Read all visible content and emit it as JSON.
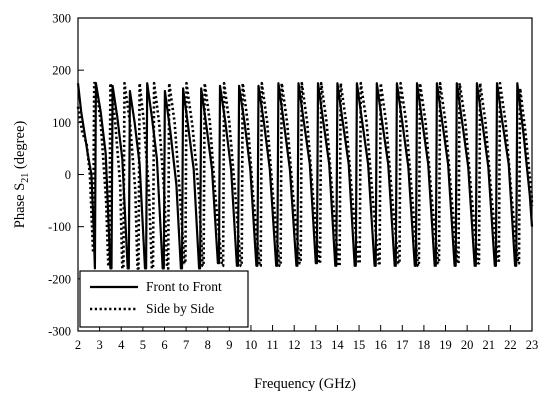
{
  "chart_data": {
    "type": "line",
    "title": "",
    "xlabel": "Frequency (GHz)",
    "ylabel_main": "Phase S",
    "ylabel_sub": "21",
    "ylabel_tail": " (degree)",
    "xlim": [
      2,
      23
    ],
    "ylim": [
      -300,
      300
    ],
    "x_ticks": [
      2,
      3,
      4,
      5,
      6,
      7,
      8,
      9,
      10,
      11,
      12,
      13,
      14,
      15,
      16,
      17,
      18,
      19,
      20,
      21,
      22,
      23
    ],
    "y_ticks": [
      -300,
      -200,
      -100,
      0,
      100,
      200,
      300
    ],
    "grid": false,
    "legend_position": "bottom-left",
    "series": [
      {
        "name": "Front to Front",
        "style": "solid",
        "color": "#000000",
        "x": [
          2.0,
          2.15,
          2.3,
          2.45,
          2.62,
          2.72,
          2.78,
          2.83,
          3.05,
          3.28,
          3.5,
          3.55,
          3.6,
          3.82,
          4.05,
          4.3,
          4.35,
          4.4,
          4.62,
          4.85,
          5.1,
          5.15,
          5.2,
          5.42,
          5.65,
          5.92,
          5.97,
          6.02,
          6.28,
          6.55,
          6.76,
          6.81,
          6.86,
          7.1,
          7.35,
          7.6,
          7.65,
          7.7,
          7.95,
          8.2,
          8.47,
          8.52,
          8.57,
          8.82,
          9.08,
          9.35,
          9.4,
          9.45,
          9.7,
          9.97,
          10.25,
          10.3,
          10.35,
          10.6,
          10.87,
          11.17,
          11.22,
          11.27,
          11.52,
          11.8,
          12.1,
          12.15,
          12.2,
          12.45,
          12.72,
          13.0,
          13.05,
          13.1,
          13.35,
          13.62,
          13.9,
          13.95,
          14.0,
          14.25,
          14.52,
          14.8,
          14.85,
          14.9,
          15.15,
          15.42,
          15.72,
          15.77,
          15.82,
          16.07,
          16.35,
          16.65,
          16.7,
          16.75,
          17.0,
          17.28,
          17.58,
          17.63,
          17.68,
          17.93,
          18.2,
          18.5,
          18.55,
          18.6,
          18.85,
          19.12,
          19.42,
          19.47,
          19.52,
          19.77,
          20.05,
          20.35,
          20.4,
          20.45,
          20.7,
          20.98,
          21.28,
          21.33,
          21.38,
          21.63,
          21.92,
          22.22,
          22.27,
          22.32,
          22.6,
          22.9,
          23.0
        ],
        "y": [
          175,
          120,
          80,
          40,
          0,
          -100,
          -180,
          175,
          120,
          40,
          -180,
          -180,
          170,
          110,
          30,
          -180,
          -180,
          160,
          100,
          20,
          -180,
          -180,
          175,
          110,
          30,
          -180,
          -180,
          160,
          80,
          -20,
          -180,
          -180,
          165,
          90,
          10,
          -180,
          -180,
          165,
          90,
          10,
          -170,
          -170,
          170,
          100,
          10,
          -175,
          -175,
          170,
          100,
          10,
          -175,
          -175,
          170,
          100,
          10,
          -175,
          -175,
          175,
          100,
          10,
          -175,
          -175,
          175,
          100,
          20,
          -170,
          -170,
          175,
          100,
          20,
          -175,
          -175,
          175,
          100,
          20,
          -175,
          -175,
          175,
          100,
          20,
          -175,
          -175,
          175,
          100,
          20,
          -175,
          -175,
          175,
          100,
          15,
          -175,
          -175,
          175,
          100,
          20,
          -175,
          -175,
          175,
          100,
          20,
          -175,
          -175,
          175,
          100,
          15,
          -175,
          -175,
          175,
          100,
          15,
          -175,
          -175,
          175,
          100,
          20,
          -175,
          -175,
          175,
          80,
          -40,
          -100
        ]
      },
      {
        "name": "Side by Side",
        "style": "dotted",
        "color": "#000000",
        "x": [
          2.0,
          2.2,
          2.4,
          2.55,
          2.7,
          2.75,
          2.82,
          3.05,
          3.3,
          3.4,
          3.45,
          3.5,
          3.72,
          3.95,
          4.05,
          4.1,
          4.15,
          4.4,
          4.65,
          4.75,
          4.8,
          4.85,
          5.05,
          5.28,
          5.42,
          5.47,
          5.52,
          5.75,
          6.0,
          6.12,
          6.17,
          6.22,
          6.47,
          6.72,
          6.92,
          6.97,
          7.02,
          7.3,
          7.6,
          7.76,
          7.81,
          7.86,
          8.1,
          8.35,
          8.66,
          8.71,
          8.76,
          9.0,
          9.28,
          9.52,
          9.57,
          9.62,
          9.85,
          10.1,
          10.4,
          10.45,
          10.5,
          10.75,
          11.02,
          11.32,
          11.37,
          11.42,
          11.67,
          11.95,
          12.25,
          12.3,
          12.35,
          12.6,
          12.87,
          13.15,
          13.2,
          13.25,
          13.5,
          13.77,
          14.05,
          14.1,
          14.15,
          14.4,
          14.68,
          14.98,
          15.03,
          15.08,
          15.35,
          15.62,
          15.9,
          15.95,
          16.0,
          16.25,
          16.52,
          16.82,
          16.87,
          16.92,
          17.18,
          17.45,
          17.72,
          17.77,
          17.82,
          18.08,
          18.35,
          18.65,
          18.7,
          18.75,
          19.0,
          19.27,
          19.55,
          19.6,
          19.65,
          19.92,
          20.2,
          20.5,
          20.55,
          20.6,
          20.85,
          21.12,
          21.42,
          21.47,
          21.52,
          21.78,
          22.05,
          22.35,
          22.4,
          22.45,
          22.7,
          22.98,
          23.0
        ],
        "y": [
          130,
          80,
          60,
          0,
          -150,
          175,
          175,
          100,
          -50,
          -175,
          -175,
          175,
          100,
          -20,
          -180,
          -180,
          175,
          100,
          -30,
          -180,
          -180,
          175,
          100,
          -30,
          -180,
          -180,
          175,
          100,
          -40,
          -180,
          -180,
          175,
          100,
          -40,
          -170,
          -170,
          175,
          90,
          -40,
          -175,
          -175,
          175,
          100,
          -40,
          -175,
          -175,
          175,
          100,
          -40,
          -175,
          -175,
          175,
          100,
          -40,
          -175,
          -175,
          175,
          100,
          -40,
          -175,
          -175,
          175,
          100,
          -40,
          -170,
          -170,
          175,
          100,
          -40,
          -170,
          -170,
          175,
          100,
          -40,
          -175,
          -175,
          175,
          100,
          -40,
          -170,
          -170,
          175,
          100,
          -40,
          -170,
          -170,
          175,
          100,
          -40,
          -170,
          -170,
          175,
          100,
          -40,
          -175,
          -175,
          175,
          100,
          -40,
          -170,
          -170,
          175,
          100,
          -40,
          -170,
          -170,
          175,
          100,
          -40,
          -170,
          -170,
          175,
          100,
          -40,
          -165,
          -165,
          175,
          100,
          -40,
          -170,
          -170,
          165,
          80,
          -40,
          -60
        ]
      }
    ]
  }
}
